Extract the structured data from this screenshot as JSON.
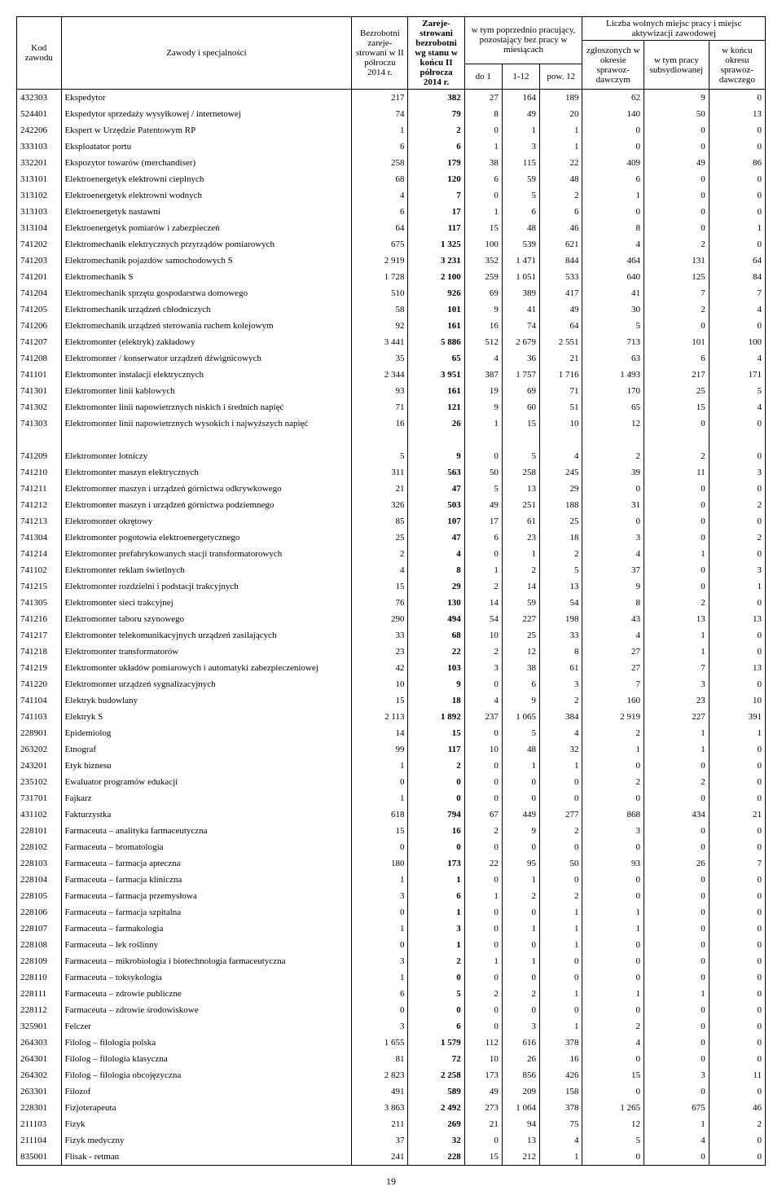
{
  "page_number": "19",
  "header": {
    "col1": "Kod zawodu",
    "col2": "Zawody i specjalności",
    "col3": "Bezrobotni zareje­strowani w II pół­roczu 2014 r.",
    "col4": "Zareje­strowani bezrobotni wg stanu w końcu II półrocza 2014 r.",
    "grp1": "w tym poprzednio pracujący, pozostający bez pracy w miesiącach",
    "grp1_a": "do 1",
    "grp1_b": "1-12",
    "grp1_c": "pow. 12",
    "grp2": "Liczba wolnych miejsc pracy i miejsc aktywizacji zawodowej",
    "grp2_a": "zgłoszonych w okresie sprawoz­dawczym",
    "grp2_b": "w tym pracy subsydiowanej",
    "grp2_c": "w końcu okresu sprawoz­dawczego"
  },
  "rows": [
    {
      "c": "432303",
      "n": "Ekspedytor",
      "v": [
        "217",
        "382",
        "27",
        "164",
        "189",
        "62",
        "9",
        "0"
      ]
    },
    {
      "c": "524401",
      "n": "Ekspedytor sprzedaży wysyłkowej / internetowej",
      "v": [
        "74",
        "79",
        "8",
        "49",
        "20",
        "140",
        "50",
        "13"
      ]
    },
    {
      "c": "242206",
      "n": "Ekspert w Urzędzie Patentowym RP",
      "v": [
        "1",
        "2",
        "0",
        "1",
        "1",
        "0",
        "0",
        "0"
      ]
    },
    {
      "c": "333103",
      "n": "Eksploatator portu",
      "v": [
        "6",
        "6",
        "1",
        "3",
        "1",
        "0",
        "0",
        "0"
      ]
    },
    {
      "c": "332201",
      "n": "Ekspozytor towarów (merchandiser)",
      "v": [
        "258",
        "179",
        "38",
        "115",
        "22",
        "409",
        "49",
        "86"
      ]
    },
    {
      "c": "313101",
      "n": "Elektroenergetyk elektrowni cieplnych",
      "v": [
        "68",
        "120",
        "6",
        "59",
        "48",
        "6",
        "0",
        "0"
      ]
    },
    {
      "c": "313102",
      "n": "Elektroenergetyk elektrowni wodnych",
      "v": [
        "4",
        "7",
        "0",
        "5",
        "2",
        "1",
        "0",
        "0"
      ]
    },
    {
      "c": "313103",
      "n": "Elektroenergetyk nastawni",
      "v": [
        "6",
        "17",
        "1",
        "6",
        "6",
        "0",
        "0",
        "0"
      ]
    },
    {
      "c": "313104",
      "n": "Elektroenergetyk pomiarów i zabezpieczeń",
      "v": [
        "64",
        "117",
        "15",
        "48",
        "46",
        "8",
        "0",
        "1"
      ]
    },
    {
      "c": "741202",
      "n": "Elektromechanik elektrycznych przyrządów pomiarowych",
      "v": [
        "675",
        "1 325",
        "100",
        "539",
        "621",
        "4",
        "2",
        "0"
      ]
    },
    {
      "c": "741203",
      "n": "Elektromechanik pojazdów samochodowych S",
      "v": [
        "2 919",
        "3 231",
        "352",
        "1 471",
        "844",
        "464",
        "131",
        "64"
      ]
    },
    {
      "c": "741201",
      "n": "Elektromechanik S",
      "v": [
        "1 728",
        "2 100",
        "259",
        "1 051",
        "533",
        "640",
        "125",
        "84"
      ]
    },
    {
      "c": "741204",
      "n": "Elektromechanik sprzętu gospodarstwa domowego",
      "v": [
        "510",
        "926",
        "69",
        "389",
        "417",
        "41",
        "7",
        "7"
      ]
    },
    {
      "c": "741205",
      "n": "Elektromechanik urządzeń chłodniczych",
      "v": [
        "58",
        "101",
        "9",
        "41",
        "49",
        "30",
        "2",
        "4"
      ]
    },
    {
      "c": "741206",
      "n": "Elektromechanik urządzeń sterowania ruchem kolejowym",
      "v": [
        "92",
        "161",
        "16",
        "74",
        "64",
        "5",
        "0",
        "0"
      ]
    },
    {
      "c": "741207",
      "n": "Elektromonter (elektryk) zakładowy",
      "v": [
        "3 441",
        "5 886",
        "512",
        "2 679",
        "2 551",
        "713",
        "101",
        "100"
      ]
    },
    {
      "c": "741208",
      "n": "Elektromonter / konserwator urządzeń dźwignicowych",
      "v": [
        "35",
        "65",
        "4",
        "36",
        "21",
        "63",
        "6",
        "4"
      ]
    },
    {
      "c": "741101",
      "n": "Elektromonter instalacji elektrycznych",
      "v": [
        "2 344",
        "3 951",
        "387",
        "1 757",
        "1 716",
        "1 493",
        "217",
        "171"
      ]
    },
    {
      "c": "741301",
      "n": "Elektromonter linii kablowych",
      "v": [
        "93",
        "161",
        "19",
        "69",
        "71",
        "170",
        "25",
        "5"
      ]
    },
    {
      "c": "741302",
      "n": "Elektromonter linii napowietrznych niskich i średnich napięć",
      "v": [
        "71",
        "121",
        "9",
        "60",
        "51",
        "65",
        "15",
        "4"
      ]
    },
    {
      "c": "741303",
      "n": "Elektromonter linii napowietrznych wysokich i najwyższych napięć",
      "v": [
        "16",
        "26",
        "1",
        "15",
        "10",
        "12",
        "0",
        "0"
      ]
    },
    {
      "c": "",
      "n": "",
      "v": [
        "",
        "",
        "",
        "",
        "",
        "",
        "",
        ""
      ]
    },
    {
      "c": "741209",
      "n": "Elektromonter lotniczy",
      "v": [
        "5",
        "9",
        "0",
        "5",
        "4",
        "2",
        "2",
        "0"
      ]
    },
    {
      "c": "741210",
      "n": "Elektromonter maszyn elektrycznych",
      "v": [
        "311",
        "563",
        "50",
        "258",
        "245",
        "39",
        "11",
        "3"
      ]
    },
    {
      "c": "741211",
      "n": "Elektromonter maszyn i urządzeń górnictwa odkrywkowego",
      "v": [
        "21",
        "47",
        "5",
        "13",
        "29",
        "0",
        "0",
        "0"
      ]
    },
    {
      "c": "741212",
      "n": "Elektromonter maszyn i urządzeń górnictwa podziemnego",
      "v": [
        "326",
        "503",
        "49",
        "251",
        "188",
        "31",
        "0",
        "2"
      ]
    },
    {
      "c": "741213",
      "n": "Elektromonter okrętowy",
      "v": [
        "85",
        "107",
        "17",
        "61",
        "25",
        "0",
        "0",
        "0"
      ]
    },
    {
      "c": "741304",
      "n": "Elektromonter pogotowia elektroenergetycznego",
      "v": [
        "25",
        "47",
        "6",
        "23",
        "18",
        "3",
        "0",
        "2"
      ]
    },
    {
      "c": "741214",
      "n": "Elektromonter prefabrykowanych stacji transformatorowych",
      "v": [
        "2",
        "4",
        "0",
        "1",
        "2",
        "4",
        "1",
        "0"
      ]
    },
    {
      "c": "741102",
      "n": "Elektromonter reklam świetlnych",
      "v": [
        "4",
        "8",
        "1",
        "2",
        "5",
        "37",
        "0",
        "3"
      ]
    },
    {
      "c": "741215",
      "n": "Elektromonter rozdzielni i podstacji trakcyjnych",
      "v": [
        "15",
        "29",
        "2",
        "14",
        "13",
        "9",
        "0",
        "1"
      ]
    },
    {
      "c": "741305",
      "n": "Elektromonter sieci trakcyjnej",
      "v": [
        "76",
        "130",
        "14",
        "59",
        "54",
        "8",
        "2",
        "0"
      ]
    },
    {
      "c": "741216",
      "n": "Elektromonter taboru szynowego",
      "v": [
        "290",
        "494",
        "54",
        "227",
        "198",
        "43",
        "13",
        "13"
      ]
    },
    {
      "c": "741217",
      "n": "Elektromonter telekomunikacyjnych urządzeń zasilających",
      "v": [
        "33",
        "68",
        "10",
        "25",
        "33",
        "4",
        "1",
        "0"
      ]
    },
    {
      "c": "741218",
      "n": "Elektromonter transformatorów",
      "v": [
        "23",
        "22",
        "2",
        "12",
        "8",
        "27",
        "1",
        "0"
      ]
    },
    {
      "c": "741219",
      "n": "Elektromonter układów pomiarowych i automatyki zabezpieczeniowej",
      "v": [
        "42",
        "103",
        "3",
        "38",
        "61",
        "27",
        "7",
        "13"
      ]
    },
    {
      "c": "741220",
      "n": "Elektromonter urządzeń sygnalizacyjnych",
      "v": [
        "10",
        "9",
        "0",
        "6",
        "3",
        "7",
        "3",
        "0"
      ]
    },
    {
      "c": "741104",
      "n": "Elektryk budowlany",
      "v": [
        "15",
        "18",
        "4",
        "9",
        "2",
        "160",
        "23",
        "10"
      ]
    },
    {
      "c": "741103",
      "n": "Elektryk S",
      "v": [
        "2 113",
        "1 892",
        "237",
        "1 065",
        "384",
        "2 919",
        "227",
        "391"
      ]
    },
    {
      "c": "228901",
      "n": "Epidemiolog",
      "v": [
        "14",
        "15",
        "0",
        "5",
        "4",
        "2",
        "1",
        "1"
      ]
    },
    {
      "c": "263202",
      "n": "Etnograf",
      "v": [
        "99",
        "117",
        "10",
        "48",
        "32",
        "1",
        "1",
        "0"
      ]
    },
    {
      "c": "243201",
      "n": "Etyk biznesu",
      "v": [
        "1",
        "2",
        "0",
        "1",
        "1",
        "0",
        "0",
        "0"
      ]
    },
    {
      "c": "235102",
      "n": "Ewaluator programów edukacji",
      "v": [
        "0",
        "0",
        "0",
        "0",
        "0",
        "2",
        "2",
        "0"
      ]
    },
    {
      "c": "731701",
      "n": "Fajkarz",
      "v": [
        "1",
        "0",
        "0",
        "0",
        "0",
        "0",
        "0",
        "0"
      ]
    },
    {
      "c": "431102",
      "n": "Fakturzystka",
      "v": [
        "618",
        "794",
        "67",
        "449",
        "277",
        "868",
        "434",
        "21"
      ]
    },
    {
      "c": "228101",
      "n": "Farmaceuta – analityka farmaceutyczna",
      "v": [
        "15",
        "16",
        "2",
        "9",
        "2",
        "3",
        "0",
        "0"
      ]
    },
    {
      "c": "228102",
      "n": "Farmaceuta – bromatologia",
      "v": [
        "0",
        "0",
        "0",
        "0",
        "0",
        "0",
        "0",
        "0"
      ]
    },
    {
      "c": "228103",
      "n": "Farmaceuta – farmacja apteczna",
      "v": [
        "180",
        "173",
        "22",
        "95",
        "50",
        "93",
        "26",
        "7"
      ]
    },
    {
      "c": "228104",
      "n": "Farmaceuta – farmacja kliniczna",
      "v": [
        "1",
        "1",
        "0",
        "1",
        "0",
        "0",
        "0",
        "0"
      ]
    },
    {
      "c": "228105",
      "n": "Farmaceuta – farmacja przemysłowa",
      "v": [
        "3",
        "6",
        "1",
        "2",
        "2",
        "0",
        "0",
        "0"
      ]
    },
    {
      "c": "228106",
      "n": "Farmaceuta – farmacja szpitalna",
      "v": [
        "0",
        "1",
        "0",
        "0",
        "1",
        "1",
        "0",
        "0"
      ]
    },
    {
      "c": "228107",
      "n": "Farmaceuta – farmakologia",
      "v": [
        "1",
        "3",
        "0",
        "1",
        "1",
        "1",
        "0",
        "0"
      ]
    },
    {
      "c": "228108",
      "n": "Farmaceuta – lek roślinny",
      "v": [
        "0",
        "1",
        "0",
        "0",
        "1",
        "0",
        "0",
        "0"
      ]
    },
    {
      "c": "228109",
      "n": "Farmaceuta – mikrobiologia i biotechnologia farmaceutyczna",
      "v": [
        "3",
        "2",
        "1",
        "1",
        "0",
        "0",
        "0",
        "0"
      ]
    },
    {
      "c": "228110",
      "n": "Farmaceuta – toksykologia",
      "v": [
        "1",
        "0",
        "0",
        "0",
        "0",
        "0",
        "0",
        "0"
      ]
    },
    {
      "c": "228111",
      "n": "Farmaceuta – zdrowie publiczne",
      "v": [
        "6",
        "5",
        "2",
        "2",
        "1",
        "1",
        "1",
        "0"
      ]
    },
    {
      "c": "228112",
      "n": "Farmaceuta – zdrowie środowiskowe",
      "v": [
        "0",
        "0",
        "0",
        "0",
        "0",
        "0",
        "0",
        "0"
      ]
    },
    {
      "c": "325901",
      "n": "Felczer",
      "v": [
        "3",
        "6",
        "0",
        "3",
        "1",
        "2",
        "0",
        "0"
      ]
    },
    {
      "c": "264303",
      "n": "Filolog –  filologia polska",
      "v": [
        "1 655",
        "1 579",
        "112",
        "616",
        "378",
        "4",
        "0",
        "0"
      ]
    },
    {
      "c": "264301",
      "n": "Filolog – filologia klasyczna",
      "v": [
        "81",
        "72",
        "10",
        "26",
        "16",
        "0",
        "0",
        "0"
      ]
    },
    {
      "c": "264302",
      "n": "Filolog – filologia obcojęzyczna",
      "v": [
        "2 823",
        "2 258",
        "173",
        "856",
        "426",
        "15",
        "3",
        "11"
      ]
    },
    {
      "c": "263301",
      "n": "Filozof",
      "v": [
        "491",
        "589",
        "49",
        "209",
        "158",
        "0",
        "0",
        "0"
      ]
    },
    {
      "c": "228301",
      "n": "Fizjoterapeuta",
      "v": [
        "3 863",
        "2 492",
        "273",
        "1 064",
        "378",
        "1 265",
        "675",
        "46"
      ]
    },
    {
      "c": "211103",
      "n": "Fizyk",
      "v": [
        "211",
        "269",
        "21",
        "94",
        "75",
        "12",
        "1",
        "2"
      ]
    },
    {
      "c": "211104",
      "n": "Fizyk medyczny",
      "v": [
        "37",
        "32",
        "0",
        "13",
        "4",
        "5",
        "4",
        "0"
      ]
    },
    {
      "c": "835001",
      "n": "Flisak - retman",
      "v": [
        "241",
        "228",
        "15",
        "212",
        "1",
        "0",
        "0",
        "0"
      ]
    }
  ]
}
